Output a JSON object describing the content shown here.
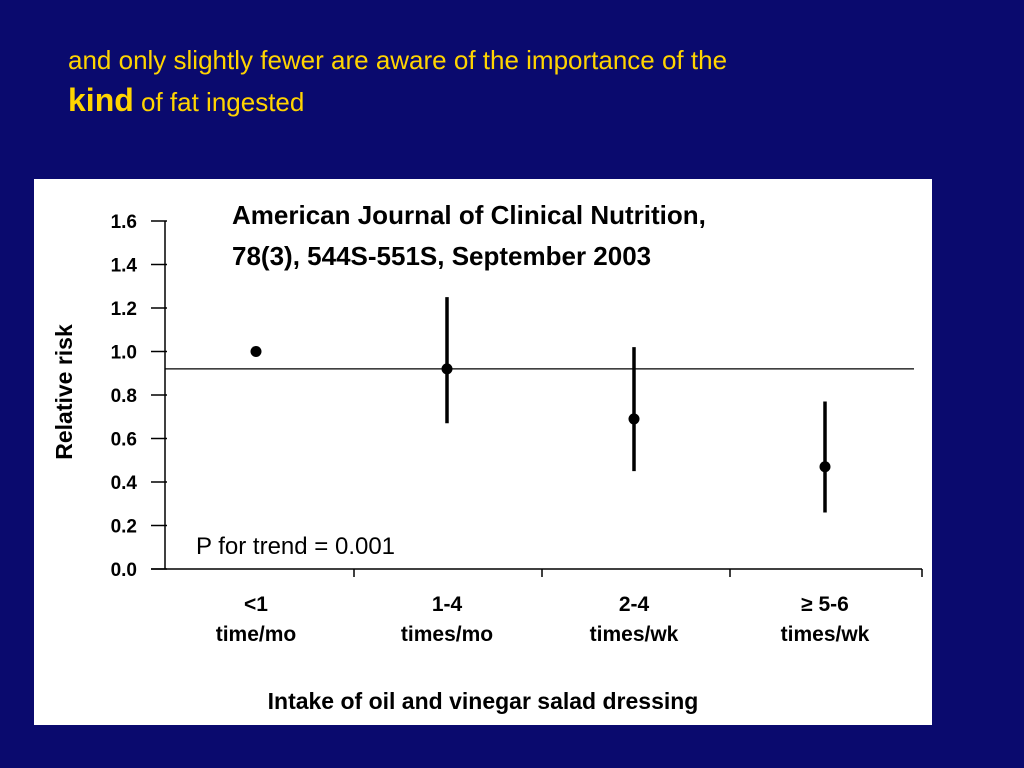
{
  "slide": {
    "title_line1": "and only slightly fewer are aware of the importance of the",
    "title_emphasis": "kind",
    "title_rest": "of fat ingested",
    "background_color": "#0a0a6e",
    "title_color": "#ffd400"
  },
  "chart_data": {
    "type": "scatter",
    "citation_line1": "American Journal of Clinical Nutrition,",
    "citation_line2": "78(3), 544S-551S, September 2003",
    "annotation": "P for trend = 0.001",
    "ylabel": "Relative risk",
    "xlabel": "Intake of oil and vinegar salad dressing",
    "ylim": [
      0,
      1.6
    ],
    "yticks": [
      "0.0",
      "0.2",
      "0.4",
      "0.6",
      "0.8",
      "1.0",
      "1.2",
      "1.4",
      "1.6"
    ],
    "reference_line": 0.92,
    "categories": [
      {
        "line1": "<1",
        "line2": "time/mo"
      },
      {
        "line1": "1-4",
        "line2": "times/mo"
      },
      {
        "line1": "2-4",
        "line2": "times/wk"
      },
      {
        "line1": "≥ 5-6",
        "line2": "times/wk"
      }
    ],
    "points": [
      {
        "value": 1.0,
        "low": null,
        "high": null
      },
      {
        "value": 0.92,
        "low": 0.67,
        "high": 1.25
      },
      {
        "value": 0.69,
        "low": 0.45,
        "high": 1.02
      },
      {
        "value": 0.47,
        "low": 0.26,
        "high": 0.77
      }
    ],
    "grid": false
  }
}
